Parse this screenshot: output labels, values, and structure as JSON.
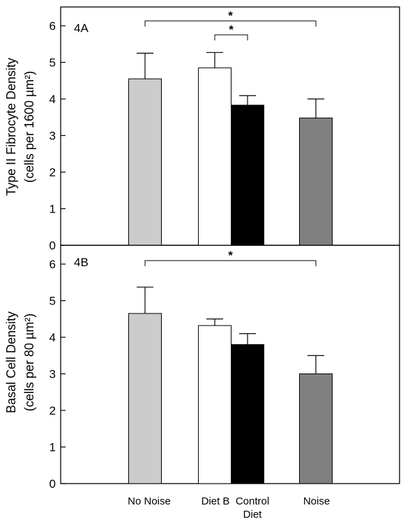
{
  "chart_data": [
    {
      "type": "bar",
      "panel_label": "4A",
      "categories": [
        "No Noise",
        "Diet B",
        "Control Diet",
        "Noise"
      ],
      "values": [
        4.55,
        4.85,
        3.83,
        3.48
      ],
      "errors": [
        0.7,
        0.42,
        0.26,
        0.52
      ],
      "colors": [
        "#cccccc",
        "#ffffff",
        "#000000",
        "#808080"
      ],
      "ylabel_line1": "Type II Fibrocyte Density",
      "ylabel_line2": "(cells per 1600 µm²)",
      "ylim": [
        0,
        6.5
      ],
      "yticks": [
        "0",
        "1",
        "2",
        "3",
        "4",
        "5",
        "6"
      ],
      "significance": [
        {
          "from": 0,
          "to": 3,
          "label": "*"
        },
        {
          "from": 1,
          "to": 2,
          "label": "*"
        }
      ]
    },
    {
      "type": "bar",
      "panel_label": "4B",
      "categories": [
        "No Noise",
        "Diet B",
        "Control Diet",
        "Noise"
      ],
      "values": [
        4.65,
        4.32,
        3.8,
        3.0
      ],
      "errors": [
        0.72,
        0.18,
        0.3,
        0.5
      ],
      "colors": [
        "#cccccc",
        "#ffffff",
        "#000000",
        "#808080"
      ],
      "ylabel_line1": "Basal Cell Density",
      "ylabel_line2": "(cells per 80 µm²)",
      "ylim": [
        0,
        6.5
      ],
      "yticks": [
        "0",
        "1",
        "2",
        "3",
        "4",
        "5",
        "6"
      ],
      "significance": [
        {
          "from": 0,
          "to": 3,
          "label": "*"
        }
      ]
    }
  ],
  "x_labels": {
    "no_noise": "No Noise",
    "diet_b": "Diet B",
    "control_line1": "Control",
    "control_line2": "Diet",
    "noise": "Noise"
  }
}
